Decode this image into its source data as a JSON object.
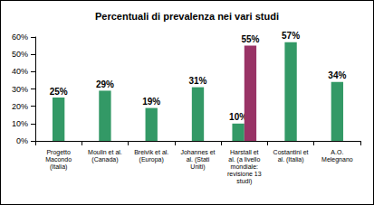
{
  "chart_data": {
    "type": "bar",
    "title": "Percentuali di prevalenza nei vari studi",
    "categories": [
      "Progetto\nMacondo\n(Italia)",
      "Moulin et al.\n(Canada)",
      "Breivik et al.\n(Europa)",
      "Johannes et\nal. (Stati\nUniti)",
      "Harstall et\nal. (a livello\nmondiale:\nrevisione 13\nstudi)",
      "Costantini et\nal. (Italia)",
      "A.O.\nMelegnano"
    ],
    "series": [
      {
        "color": "#339966",
        "values": [
          25,
          29,
          19,
          31,
          10,
          57,
          34
        ],
        "value_labels": [
          "25%",
          "29%",
          "19%",
          "31%",
          "10%",
          "57%",
          "34%"
        ]
      },
      {
        "color": "#993366",
        "values": [
          null,
          null,
          null,
          null,
          55,
          null,
          null
        ],
        "value_labels": [
          null,
          null,
          null,
          null,
          "55%",
          null,
          null
        ]
      }
    ],
    "ylim": [
      0,
      60
    ],
    "yticks": [
      {
        "value": 0,
        "label": "0%"
      },
      {
        "value": 10,
        "label": "10%"
      },
      {
        "value": 20,
        "label": "20%"
      },
      {
        "value": 30,
        "label": "30%"
      },
      {
        "value": 40,
        "label": "40%"
      },
      {
        "value": 50,
        "label": "50%"
      },
      {
        "value": 60,
        "label": "60%"
      }
    ],
    "grid": false,
    "data_labels": true
  }
}
